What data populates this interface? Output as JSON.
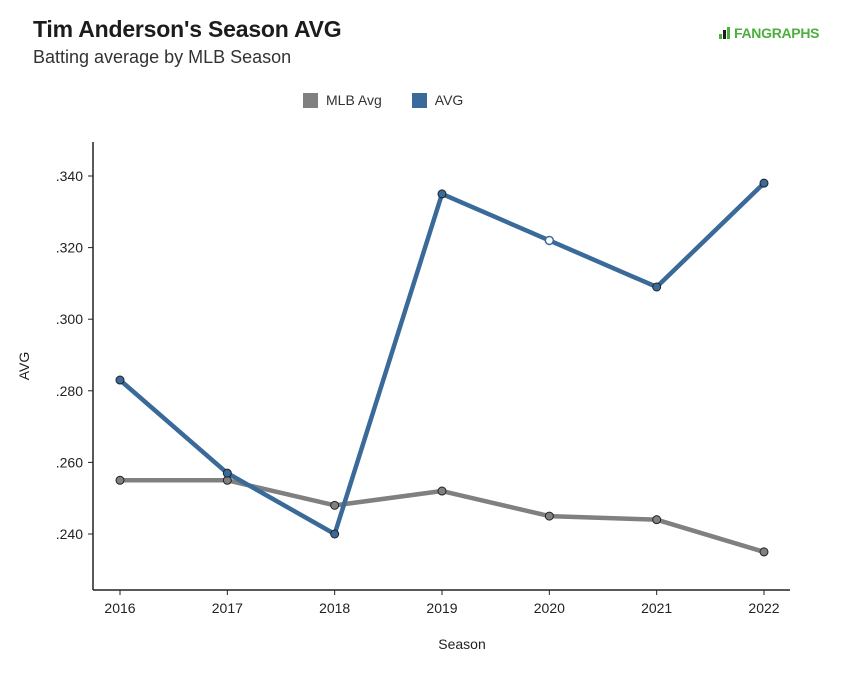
{
  "header": {
    "title": "Tim Anderson's Season AVG",
    "subtitle": "Batting average by MLB Season",
    "logo_text": "FANGRAPHS"
  },
  "colors": {
    "mlb_avg": "#808080",
    "avg": "#3a6a99",
    "logo": "#4caf3e"
  },
  "chart_data": {
    "type": "line",
    "title": "Tim Anderson's Season AVG",
    "subtitle": "Batting average by MLB Season",
    "xlabel": "Season",
    "ylabel": "AVG",
    "categories": [
      "2016",
      "2017",
      "2018",
      "2019",
      "2020",
      "2021",
      "2022"
    ],
    "ylim": [
      0.23,
      0.35
    ],
    "yticks": [
      0.24,
      0.26,
      0.28,
      0.3,
      0.32,
      0.34
    ],
    "ytick_labels": [
      ".240",
      ".260",
      ".280",
      ".300",
      ".320",
      ".340"
    ],
    "legend_position": "top-center",
    "grid": false,
    "series": [
      {
        "name": "MLB Avg",
        "color": "#808080",
        "values": [
          0.255,
          0.255,
          0.248,
          0.252,
          0.245,
          0.244,
          0.235
        ],
        "open_markers": []
      },
      {
        "name": "AVG",
        "color": "#3a6a99",
        "values": [
          0.283,
          0.257,
          0.24,
          0.335,
          0.322,
          0.309,
          0.338
        ],
        "open_markers": [
          "2020"
        ]
      }
    ]
  }
}
